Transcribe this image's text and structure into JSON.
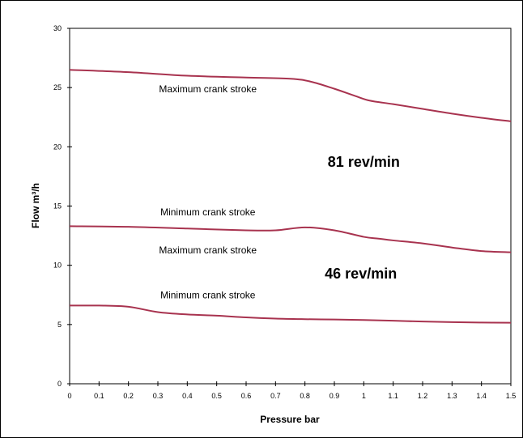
{
  "chart_data": {
    "type": "line",
    "title": "",
    "xlabel": "Pressure bar",
    "ylabel": "Flow m³/h",
    "xlim": [
      0,
      1.5
    ],
    "ylim": [
      0,
      30
    ],
    "x_ticks": [
      "0",
      "0.1",
      "0.2",
      "0.3",
      "0.4",
      "0.5",
      "0.6",
      "0.7",
      "0.8",
      "0.9",
      "1",
      "1.1",
      "1.2",
      "1.3",
      "1.4",
      "1.5"
    ],
    "y_ticks": [
      "0",
      "5",
      "10",
      "15",
      "20",
      "25",
      "30"
    ],
    "grid": false,
    "line_color": "#a8334f",
    "series": [
      {
        "x": [
          0,
          0.2,
          0.4,
          0.6,
          0.75,
          0.82,
          0.9,
          0.97,
          1.02,
          1.1,
          1.2,
          1.3,
          1.4,
          1.5
        ],
        "y": [
          26.5,
          26.3,
          26.0,
          25.85,
          25.75,
          25.5,
          24.9,
          24.3,
          23.9,
          23.6,
          23.2,
          22.8,
          22.45,
          22.15
        ]
      },
      {
        "x": [
          0,
          0.2,
          0.4,
          0.6,
          0.7,
          0.8,
          0.9,
          1.0,
          1.05,
          1.1,
          1.2,
          1.3,
          1.4,
          1.5
        ],
        "y": [
          13.3,
          13.25,
          13.1,
          12.95,
          12.95,
          13.2,
          12.95,
          12.4,
          12.25,
          12.1,
          11.85,
          11.5,
          11.2,
          11.1
        ]
      },
      {
        "x": [
          0,
          0.1,
          0.2,
          0.3,
          0.4,
          0.5,
          0.6,
          0.7,
          0.8,
          0.9,
          1.0,
          1.1,
          1.2,
          1.3,
          1.4,
          1.5
        ],
        "y": [
          6.6,
          6.6,
          6.5,
          6.05,
          5.85,
          5.75,
          5.6,
          5.5,
          5.45,
          5.42,
          5.38,
          5.32,
          5.25,
          5.2,
          5.17,
          5.15
        ]
      }
    ],
    "annotations": [
      {
        "text": "Maximum crank stroke",
        "x": 0.47,
        "y": 24.6,
        "style": "normal"
      },
      {
        "text": "81 rev/min",
        "x": 1.0,
        "y": 18.3,
        "style": "bold"
      },
      {
        "text": "Minimum crank stroke",
        "x": 0.47,
        "y": 14.2,
        "style": "normal"
      },
      {
        "text": "Maximum crank stroke",
        "x": 0.47,
        "y": 11.0,
        "style": "normal"
      },
      {
        "text": "46 rev/min",
        "x": 0.99,
        "y": 8.9,
        "style": "bold"
      },
      {
        "text": "Minimum crank stroke",
        "x": 0.47,
        "y": 7.2,
        "style": "normal"
      }
    ]
  }
}
